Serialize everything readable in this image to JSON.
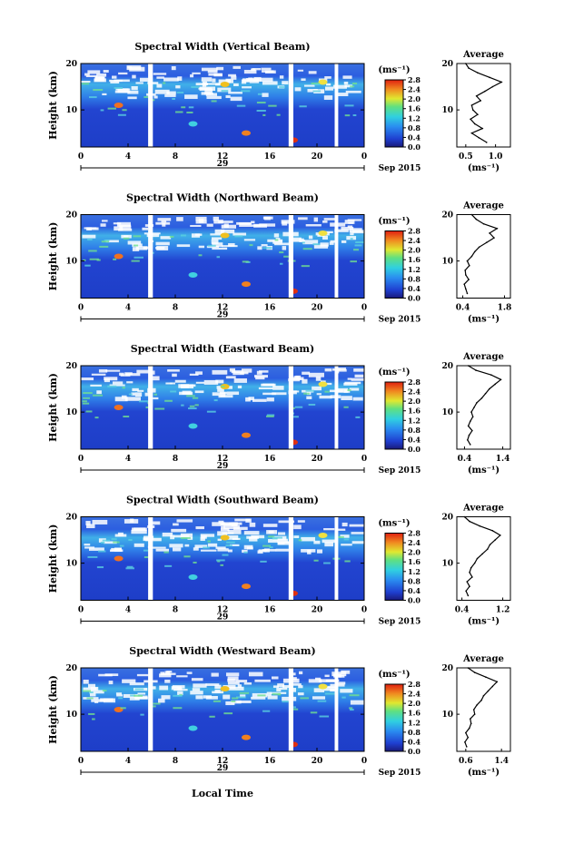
{
  "figure": {
    "xlabel": "Local Time",
    "date_label": "29",
    "month_label": "Sep 2015"
  },
  "chart_data": [
    {
      "type": "heatmap",
      "title": "Spectral Width (Vertical Beam)",
      "ylabel": "Height (km)",
      "x_ticks": [
        "0",
        "4",
        "8",
        "12",
        "16",
        "20",
        "0"
      ],
      "y_ticks": [
        "20",
        "10"
      ],
      "xlim": [
        0,
        24
      ],
      "ylim": [
        2,
        20
      ],
      "colorbar": {
        "unit": "(ms⁻¹)",
        "ticks": [
          "2.8",
          "2.4",
          "2.0",
          "1.6",
          "1.2",
          "0.8",
          "0.4",
          "0.0"
        ],
        "range": [
          0,
          2.8
        ]
      },
      "data_gaps_hours": [
        [
          5.7,
          6.1
        ],
        [
          17.6,
          18.0
        ],
        [
          21.5,
          21.8
        ]
      ],
      "average_profile": {
        "title": "Average",
        "xlabel": "(ms⁻¹)",
        "x_ticks": [
          "0.5",
          "1.0"
        ],
        "xlim": [
          0.35,
          1.25
        ],
        "heights": [
          3,
          4,
          5,
          6,
          7,
          8,
          9,
          10,
          11,
          12,
          13,
          14,
          15,
          16,
          17,
          18,
          19,
          20
        ],
        "values": [
          0.85,
          0.72,
          0.6,
          0.78,
          0.65,
          0.58,
          0.7,
          0.62,
          0.6,
          0.75,
          0.68,
          0.82,
          0.95,
          1.1,
          0.9,
          0.7,
          0.55,
          0.5
        ]
      }
    },
    {
      "type": "heatmap",
      "title": "Spectral Width (Northward Beam)",
      "ylabel": "Height (km)",
      "x_ticks": [
        "0",
        "4",
        "8",
        "12",
        "16",
        "20",
        "0"
      ],
      "y_ticks": [
        "20",
        "10"
      ],
      "xlim": [
        0,
        24
      ],
      "ylim": [
        2,
        20
      ],
      "colorbar": {
        "unit": "(ms⁻¹)",
        "ticks": [
          "2.8",
          "2.4",
          "2.0",
          "1.6",
          "1.2",
          "0.8",
          "0.4",
          "0.0"
        ],
        "range": [
          0,
          2.8
        ]
      },
      "data_gaps_hours": [
        [
          5.7,
          6.1
        ],
        [
          17.6,
          18.0
        ],
        [
          21.5,
          21.8
        ]
      ],
      "average_profile": {
        "title": "Average",
        "xlabel": "(ms⁻¹)",
        "x_ticks": [
          "0.4",
          "1.8"
        ],
        "xlim": [
          0.2,
          2.0
        ],
        "heights": [
          3,
          4,
          5,
          6,
          7,
          8,
          9,
          10,
          11,
          12,
          13,
          14,
          15,
          16,
          17,
          18,
          19,
          20
        ],
        "values": [
          0.55,
          0.5,
          0.45,
          0.6,
          0.5,
          0.48,
          0.62,
          0.55,
          0.7,
          0.8,
          0.95,
          1.2,
          1.45,
          1.3,
          1.55,
          1.1,
          0.85,
          0.7
        ]
      }
    },
    {
      "type": "heatmap",
      "title": "Spectral Width (Eastward Beam)",
      "ylabel": "Height (km)",
      "x_ticks": [
        "0",
        "4",
        "8",
        "12",
        "16",
        "20",
        "0"
      ],
      "y_ticks": [
        "20",
        "10"
      ],
      "xlim": [
        0,
        24
      ],
      "ylim": [
        2,
        20
      ],
      "colorbar": {
        "unit": "(ms⁻¹)",
        "ticks": [
          "2.8",
          "2.4",
          "2.0",
          "1.6",
          "1.2",
          "0.8",
          "0.4",
          "0.0"
        ],
        "range": [
          0,
          2.8
        ]
      },
      "data_gaps_hours": [
        [
          5.7,
          6.1
        ],
        [
          17.6,
          18.0
        ],
        [
          21.5,
          21.8
        ]
      ],
      "average_profile": {
        "title": "Average",
        "xlabel": "(ms⁻¹)",
        "x_ticks": [
          "0.4",
          "1.4"
        ],
        "xlim": [
          0.2,
          1.6
        ],
        "heights": [
          3,
          4,
          5,
          6,
          7,
          8,
          9,
          10,
          11,
          12,
          13,
          14,
          15,
          16,
          17,
          18,
          19,
          20
        ],
        "values": [
          0.55,
          0.48,
          0.52,
          0.6,
          0.5,
          0.55,
          0.62,
          0.58,
          0.65,
          0.72,
          0.85,
          0.95,
          1.05,
          1.2,
          1.35,
          1.1,
          0.7,
          0.5
        ]
      }
    },
    {
      "type": "heatmap",
      "title": "Spectral Width (Southward Beam)",
      "ylabel": "Height (km)",
      "x_ticks": [
        "0",
        "4",
        "8",
        "12",
        "16",
        "20",
        "0"
      ],
      "y_ticks": [
        "20",
        "10"
      ],
      "xlim": [
        0,
        24
      ],
      "ylim": [
        2,
        20
      ],
      "colorbar": {
        "unit": "(ms⁻¹)",
        "ticks": [
          "2.8",
          "2.4",
          "2.0",
          "1.6",
          "1.2",
          "0.8",
          "0.4",
          "0.0"
        ],
        "range": [
          0,
          2.8
        ]
      },
      "data_gaps_hours": [
        [
          5.7,
          6.1
        ],
        [
          17.6,
          18.0
        ],
        [
          21.5,
          21.8
        ]
      ],
      "average_profile": {
        "title": "Average",
        "xlabel": "(ms⁻¹)",
        "x_ticks": [
          "0.4",
          "1.2"
        ],
        "xlim": [
          0.3,
          1.35
        ],
        "heights": [
          3,
          4,
          5,
          6,
          7,
          8,
          9,
          10,
          11,
          12,
          13,
          14,
          15,
          16,
          17,
          18,
          19,
          20
        ],
        "values": [
          0.52,
          0.48,
          0.55,
          0.5,
          0.6,
          0.55,
          0.58,
          0.65,
          0.7,
          0.8,
          0.9,
          0.95,
          1.05,
          1.15,
          1.0,
          0.75,
          0.55,
          0.45
        ]
      }
    },
    {
      "type": "heatmap",
      "title": "Spectral Width (Westward Beam)",
      "ylabel": "Height (km)",
      "x_ticks": [
        "0",
        "4",
        "8",
        "12",
        "16",
        "20",
        "0"
      ],
      "y_ticks": [
        "20",
        "10"
      ],
      "xlim": [
        0,
        24
      ],
      "ylim": [
        2,
        20
      ],
      "colorbar": {
        "unit": "(ms⁻¹)",
        "ticks": [
          "2.8",
          "2.4",
          "2.0",
          "1.6",
          "1.2",
          "0.8",
          "0.4",
          "0.0"
        ],
        "range": [
          0,
          2.8
        ]
      },
      "data_gaps_hours": [
        [
          5.7,
          6.1
        ],
        [
          17.6,
          18.0
        ],
        [
          21.5,
          21.8
        ]
      ],
      "average_profile": {
        "title": "Average",
        "xlabel": "(ms⁻¹)",
        "x_ticks": [
          "0.6",
          "1.4"
        ],
        "xlim": [
          0.4,
          1.6
        ],
        "heights": [
          3,
          4,
          5,
          6,
          7,
          8,
          9,
          10,
          11,
          12,
          13,
          14,
          15,
          16,
          17,
          18,
          19,
          20
        ],
        "values": [
          0.62,
          0.58,
          0.65,
          0.6,
          0.68,
          0.72,
          0.7,
          0.8,
          0.78,
          0.85,
          0.95,
          1.0,
          1.1,
          1.2,
          1.3,
          1.05,
          0.8,
          0.65
        ]
      }
    }
  ]
}
